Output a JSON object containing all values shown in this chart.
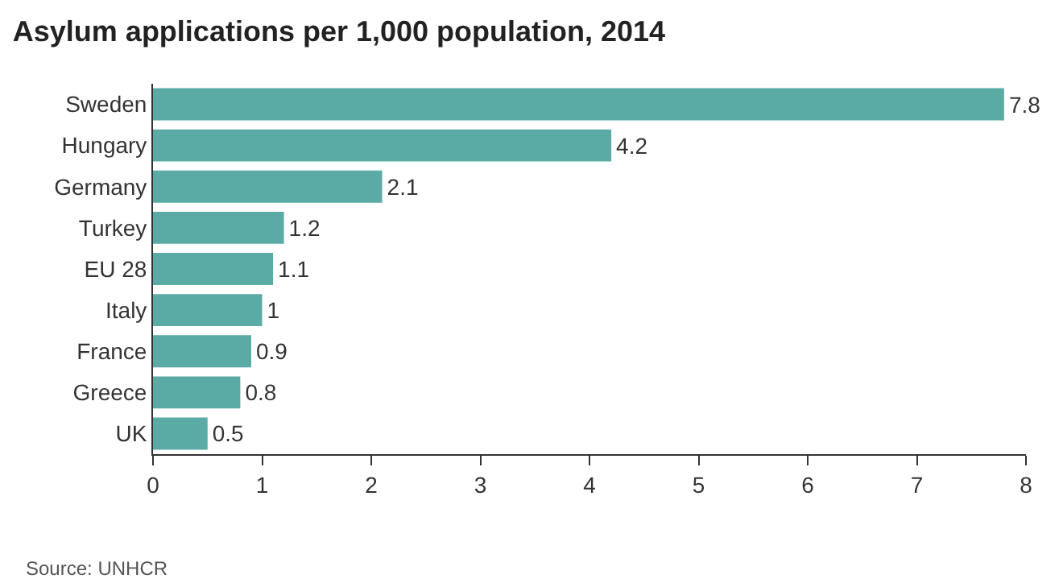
{
  "chart_data": {
    "type": "bar",
    "orientation": "horizontal",
    "title": "Asylum applications per 1,000 population, 2014",
    "categories": [
      "Sweden",
      "Hungary",
      "Germany",
      "Turkey",
      "EU 28",
      "Italy",
      "France",
      "Greece",
      "UK"
    ],
    "values": [
      7.8,
      4.2,
      2.1,
      1.2,
      1.1,
      1,
      0.9,
      0.8,
      0.5
    ],
    "color": "#5aaaa5",
    "data_labels": true,
    "xlim": [
      0,
      8
    ],
    "xticks": [
      0,
      1,
      2,
      3,
      4,
      5,
      6,
      7,
      8
    ],
    "annotations": [
      "Source: UNHCR"
    ]
  }
}
